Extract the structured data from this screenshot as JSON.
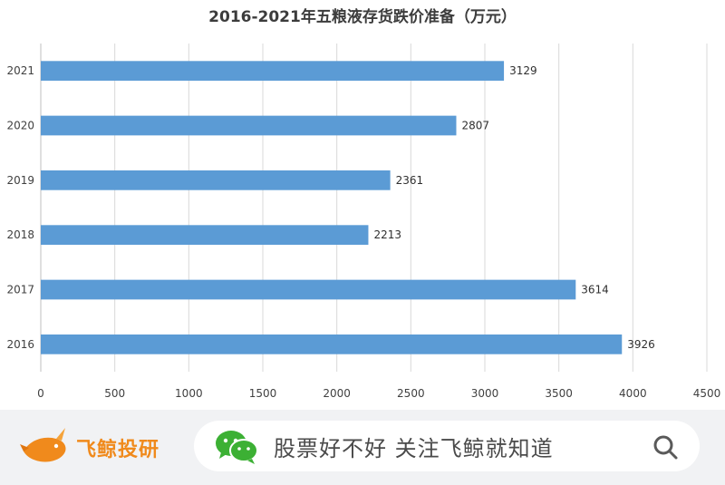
{
  "chart_data": {
    "type": "bar",
    "orientation": "horizontal",
    "title": "2016-2021年五粮液存货跌价准备（万元）",
    "categories": [
      "2021",
      "2020",
      "2019",
      "2018",
      "2017",
      "2016"
    ],
    "values": [
      3129,
      2807,
      2361,
      2213,
      3614,
      3926
    ],
    "xlim": [
      0,
      4500
    ],
    "xticks": [
      0,
      500,
      1000,
      1500,
      2000,
      2500,
      3000,
      3500,
      4000,
      4500
    ],
    "bar_color": "#5b9bd5",
    "grid": true,
    "data_labels": true
  },
  "footer": {
    "brand_name": "飞鲸投研",
    "search_text": "股票好不好  关注飞鲸就知道",
    "brand_color": "#f08a1c",
    "wechat_color": "#3cb034",
    "icons": [
      "whale-logo-icon",
      "wechat-icon",
      "search-icon"
    ]
  }
}
